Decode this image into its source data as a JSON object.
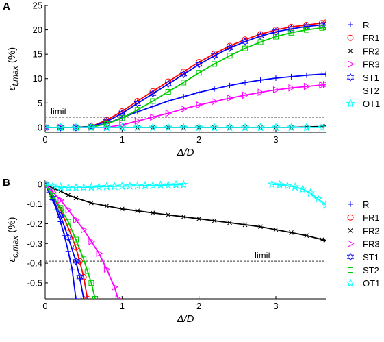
{
  "chart_data": [
    {
      "panel_label": "A",
      "type": "line",
      "xlabel": "Δ/D",
      "ylabel": "εt,max (%)",
      "ylabel_main": "ε",
      "ylabel_sub": "t,max",
      "ylabel_unit": " (%)",
      "xlim": [
        0,
        3.65
      ],
      "ylim": [
        -1,
        25
      ],
      "xticks": [
        0,
        1,
        2,
        3
      ],
      "yticks": [
        0,
        5,
        10,
        15,
        20,
        25
      ],
      "grid": false,
      "legend_position": "right",
      "limit_line": {
        "y": 2.1,
        "label": "limit"
      },
      "series": [
        {
          "name": "R",
          "color": "#0000ff",
          "marker": "plus",
          "x": [
            0,
            0.2,
            0.4,
            0.6,
            0.8,
            1.0,
            1.2,
            1.4,
            1.6,
            1.8,
            2.0,
            2.2,
            2.4,
            2.6,
            2.8,
            3.0,
            3.2,
            3.4,
            3.6,
            3.65
          ],
          "y": [
            0,
            0,
            0,
            0.1,
            0.8,
            2.0,
            3.2,
            4.3,
            5.4,
            6.3,
            7.2,
            7.9,
            8.6,
            9.2,
            9.7,
            10.1,
            10.4,
            10.7,
            10.9,
            10.9
          ]
        },
        {
          "name": "FR1",
          "color": "#ff0000",
          "marker": "circle",
          "x": [
            0,
            0.2,
            0.4,
            0.6,
            0.8,
            1.0,
            1.2,
            1.4,
            1.6,
            1.8,
            2.0,
            2.2,
            2.4,
            2.6,
            2.8,
            3.0,
            3.2,
            3.4,
            3.6,
            3.65
          ],
          "y": [
            0,
            0,
            0,
            0.2,
            1.5,
            3.3,
            5.4,
            7.4,
            9.4,
            11.4,
            13.4,
            15.1,
            16.7,
            18.0,
            19.1,
            20.0,
            20.6,
            21.0,
            21.4,
            21.5
          ]
        },
        {
          "name": "FR2",
          "color": "#000000",
          "marker": "x",
          "x": [
            0,
            0.2,
            0.4,
            0.6,
            0.8,
            1.0,
            1.2,
            1.4,
            1.6,
            1.8,
            2.0,
            2.2,
            2.4,
            2.6,
            2.8,
            3.0,
            3.2,
            3.4,
            3.6,
            3.65
          ],
          "y": [
            0,
            0,
            0,
            0,
            0,
            0,
            0,
            0,
            0,
            0,
            0,
            0,
            0,
            0,
            0,
            0,
            0,
            0.1,
            0.2,
            0.3
          ]
        },
        {
          "name": "FR3",
          "color": "#ff00ff",
          "marker": "triangle-right",
          "x": [
            0,
            0.2,
            0.4,
            0.6,
            0.8,
            1.0,
            1.2,
            1.4,
            1.6,
            1.8,
            2.0,
            2.2,
            2.4,
            2.6,
            2.8,
            3.0,
            3.2,
            3.4,
            3.6,
            3.65
          ],
          "y": [
            0,
            0,
            0,
            0,
            0,
            0.5,
            1.3,
            2.1,
            2.9,
            3.8,
            4.6,
            5.3,
            6.0,
            6.6,
            7.2,
            7.7,
            8.1,
            8.4,
            8.7,
            8.8
          ]
        },
        {
          "name": "ST1",
          "color": "#0000ff",
          "marker": "hexagram",
          "x": [
            0,
            0.2,
            0.4,
            0.6,
            0.8,
            1.0,
            1.2,
            1.4,
            1.6,
            1.8,
            2.0,
            2.2,
            2.4,
            2.6,
            2.8,
            3.0,
            3.2,
            3.4,
            3.6,
            3.65
          ],
          "y": [
            0,
            0,
            0,
            0.2,
            1.2,
            2.9,
            4.9,
            6.9,
            8.9,
            10.9,
            12.9,
            14.7,
            16.3,
            17.6,
            18.7,
            19.6,
            20.2,
            20.7,
            21.0,
            21.0
          ]
        },
        {
          "name": "ST2",
          "color": "#00cc00",
          "marker": "square",
          "x": [
            0,
            0.2,
            0.4,
            0.6,
            0.8,
            1.0,
            1.2,
            1.4,
            1.6,
            1.8,
            2.0,
            2.2,
            2.4,
            2.6,
            2.8,
            3.0,
            3.2,
            3.4,
            3.6,
            3.65
          ],
          "y": [
            0,
            0,
            0,
            0.1,
            0.7,
            1.9,
            3.6,
            5.4,
            7.3,
            9.2,
            11.2,
            13.0,
            14.7,
            16.2,
            17.5,
            18.6,
            19.4,
            20.0,
            20.4,
            20.5
          ]
        },
        {
          "name": "OT1",
          "color": "#00ffff",
          "marker": "pentagram",
          "x": [
            0,
            0.2,
            0.4,
            0.6,
            0.8,
            1.0,
            1.2,
            1.4,
            1.6,
            1.8,
            2.0,
            2.2,
            2.4,
            2.6,
            2.8,
            3.0,
            3.2,
            3.4,
            3.6
          ],
          "y": [
            0,
            0,
            0,
            0,
            0,
            0,
            0,
            0,
            0,
            0,
            0,
            0,
            0,
            0,
            0,
            0,
            0,
            0,
            0
          ]
        }
      ]
    },
    {
      "panel_label": "B",
      "type": "line",
      "xlabel": "Δ/D",
      "ylabel": "εc,max (%)",
      "ylabel_main": "ε",
      "ylabel_sub": "c,max",
      "ylabel_unit": " (%)",
      "xlim": [
        0,
        3.65
      ],
      "ylim": [
        -0.58,
        0.02
      ],
      "xticks": [
        0,
        1,
        2,
        3
      ],
      "yticks": [
        0,
        -0.1,
        -0.2,
        -0.3,
        -0.4,
        -0.5
      ],
      "yticklabels": [
        "0",
        "-0.1",
        "-0.2",
        "-0.3",
        "-0.4",
        "-0.5"
      ],
      "grid": false,
      "legend_position": "right",
      "limit_line": {
        "y": -0.39,
        "label": "limit"
      },
      "series": [
        {
          "name": "R",
          "color": "#0000ff",
          "marker": "plus",
          "x": [
            0,
            0.05,
            0.1,
            0.15,
            0.2,
            0.25,
            0.3,
            0.35,
            0.4
          ],
          "y": [
            0,
            -0.04,
            -0.08,
            -0.13,
            -0.19,
            -0.26,
            -0.34,
            -0.43,
            -0.58
          ]
        },
        {
          "name": "FR1",
          "color": "#ff0000",
          "marker": "circle",
          "x": [
            0,
            0.1,
            0.2,
            0.3,
            0.4,
            0.45,
            0.5,
            0.55
          ],
          "y": [
            0,
            -0.06,
            -0.13,
            -0.22,
            -0.32,
            -0.39,
            -0.47,
            -0.58
          ]
        },
        {
          "name": "FR2",
          "color": "#000000",
          "marker": "x",
          "x": [
            0,
            0.1,
            0.2,
            0.3,
            0.4,
            0.6,
            0.8,
            1.0,
            1.2,
            1.4,
            1.6,
            1.8,
            2.0,
            2.2,
            2.4,
            2.6,
            2.8,
            3.0,
            3.2,
            3.4,
            3.6,
            3.65
          ],
          "y": [
            0,
            -0.02,
            -0.035,
            -0.055,
            -0.07,
            -0.095,
            -0.11,
            -0.125,
            -0.135,
            -0.145,
            -0.155,
            -0.165,
            -0.175,
            -0.185,
            -0.195,
            -0.205,
            -0.215,
            -0.23,
            -0.245,
            -0.26,
            -0.28,
            -0.285
          ]
        },
        {
          "name": "FR3",
          "color": "#ff00ff",
          "marker": "triangle-right",
          "x": [
            0,
            0.1,
            0.2,
            0.3,
            0.4,
            0.5,
            0.6,
            0.7,
            0.8,
            0.9,
            0.95
          ],
          "y": [
            0,
            -0.04,
            -0.08,
            -0.13,
            -0.18,
            -0.23,
            -0.29,
            -0.35,
            -0.43,
            -0.52,
            -0.58
          ]
        },
        {
          "name": "ST1",
          "color": "#0000ff",
          "marker": "hexagram",
          "x": [
            0,
            0.1,
            0.2,
            0.3,
            0.4,
            0.45,
            0.5
          ],
          "y": [
            0,
            -0.07,
            -0.16,
            -0.27,
            -0.39,
            -0.47,
            -0.58
          ]
        },
        {
          "name": "ST2",
          "color": "#00cc00",
          "marker": "square",
          "x": [
            0,
            0.1,
            0.2,
            0.3,
            0.4,
            0.5,
            0.55,
            0.6,
            0.65
          ],
          "y": [
            0,
            -0.06,
            -0.12,
            -0.19,
            -0.28,
            -0.38,
            -0.44,
            -0.5,
            -0.58
          ]
        },
        {
          "name": "OT1",
          "color": "#00ffff",
          "marker": "pentagram",
          "segments": [
            {
              "x": [
                0,
                0.1,
                0.2,
                0.3,
                0.4,
                0.5,
                0.6,
                0.7,
                0.8,
                0.9,
                1.0,
                1.1,
                1.2,
                1.3,
                1.4,
                1.5,
                1.6,
                1.7,
                1.8
              ],
              "y": [
                0,
                -0.01,
                -0.015,
                -0.018,
                -0.018,
                -0.016,
                -0.015,
                -0.013,
                -0.012,
                -0.011,
                -0.01,
                -0.009,
                -0.008,
                -0.007,
                -0.006,
                -0.005,
                -0.004,
                -0.003,
                -0.002
              ]
            },
            {
              "x": [
                2.95,
                3.05,
                3.15,
                3.25,
                3.35,
                3.45,
                3.55,
                3.65
              ],
              "y": [
                0,
                -0.003,
                -0.008,
                -0.014,
                -0.025,
                -0.045,
                -0.075,
                -0.105
              ]
            }
          ]
        }
      ]
    }
  ]
}
